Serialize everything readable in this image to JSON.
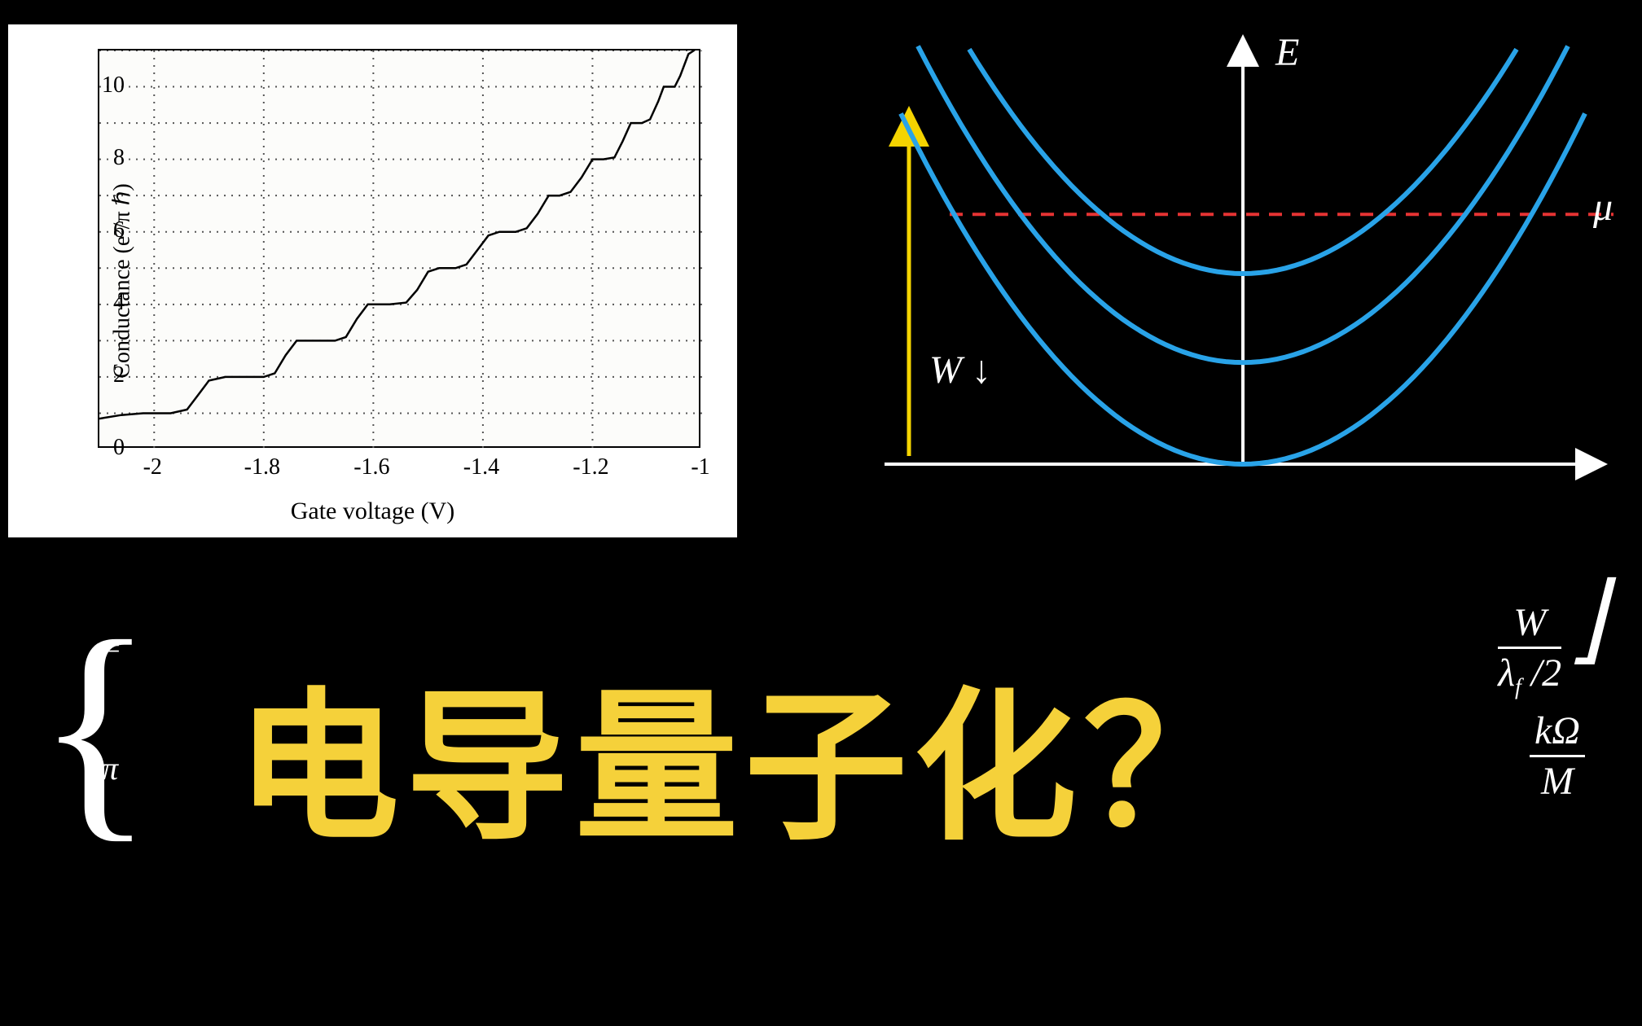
{
  "conductance_chart": {
    "type": "step-line",
    "background_color": "#ffffff",
    "plot_bg": "#fcfcfa",
    "border_color": "#000000",
    "line_color": "#000000",
    "line_width": 2.5,
    "grid_style": "dotted",
    "grid_color": "#555555",
    "xlabel": "Gate voltage  (V)",
    "ylabel": "Conductance (e²/π ℏ)",
    "label_fontsize": 28,
    "tick_fontsize": 28,
    "xlim": [
      -2.1,
      -1.0
    ],
    "ylim": [
      0,
      11
    ],
    "xticks": [
      -2,
      -1.8,
      -1.6,
      -1.4,
      -1.2,
      -1
    ],
    "yticks": [
      0,
      2,
      4,
      6,
      8,
      10
    ],
    "x_grid_at": [
      -2,
      -1.8,
      -1.6,
      -1.4,
      -1.2
    ],
    "y_grid_at": [
      1,
      2,
      3,
      4,
      5,
      6,
      7,
      8,
      9,
      10,
      11
    ],
    "step_points": [
      [
        -2.1,
        0.85
      ],
      [
        -2.06,
        0.95
      ],
      [
        -2.02,
        1.0
      ],
      [
        -1.97,
        1.0
      ],
      [
        -1.94,
        1.1
      ],
      [
        -1.92,
        1.5
      ],
      [
        -1.9,
        1.9
      ],
      [
        -1.87,
        2.0
      ],
      [
        -1.8,
        2.0
      ],
      [
        -1.78,
        2.1
      ],
      [
        -1.76,
        2.6
      ],
      [
        -1.74,
        3.0
      ],
      [
        -1.7,
        3.0
      ],
      [
        -1.67,
        3.0
      ],
      [
        -1.65,
        3.1
      ],
      [
        -1.63,
        3.6
      ],
      [
        -1.61,
        4.0
      ],
      [
        -1.57,
        4.0
      ],
      [
        -1.54,
        4.05
      ],
      [
        -1.52,
        4.4
      ],
      [
        -1.5,
        4.9
      ],
      [
        -1.48,
        5.0
      ],
      [
        -1.45,
        5.0
      ],
      [
        -1.43,
        5.1
      ],
      [
        -1.41,
        5.5
      ],
      [
        -1.39,
        5.9
      ],
      [
        -1.37,
        6.0
      ],
      [
        -1.34,
        6.0
      ],
      [
        -1.32,
        6.1
      ],
      [
        -1.3,
        6.5
      ],
      [
        -1.28,
        7.0
      ],
      [
        -1.26,
        7.0
      ],
      [
        -1.24,
        7.1
      ],
      [
        -1.22,
        7.5
      ],
      [
        -1.2,
        8.0
      ],
      [
        -1.18,
        8.0
      ],
      [
        -1.16,
        8.05
      ],
      [
        -1.145,
        8.5
      ],
      [
        -1.13,
        9.0
      ],
      [
        -1.11,
        9.0
      ],
      [
        -1.095,
        9.1
      ],
      [
        -1.08,
        9.6
      ],
      [
        -1.07,
        10.0
      ],
      [
        -1.05,
        10.0
      ],
      [
        -1.04,
        10.3
      ],
      [
        -1.025,
        10.9
      ],
      [
        -1.015,
        11.0
      ],
      [
        -1.0,
        11.2
      ]
    ]
  },
  "energy_diagram": {
    "type": "parabola-bands",
    "background_color": "#000000",
    "parabola_color": "#29a3e8",
    "parabola_width": 6,
    "mu_line_color": "#e63333",
    "mu_line_width": 4,
    "axis_color": "#ffffff",
    "yellow_arrow_color": "#f5d400",
    "E_label": "E",
    "mu_label": "μ",
    "W_label": "W ↓",
    "label_fontsize": 44,
    "parabola_minima_y": [
      0,
      0.24,
      0.45
    ],
    "parabola_coeff": 2.3,
    "mu_y": 0.59,
    "xrange": [
      -0.6,
      0.6
    ]
  },
  "title": {
    "text": "电导量子化？",
    "color": "#f5d13a",
    "fontsize": 200,
    "fontweight": "bold"
  },
  "side_formulas": {
    "left_bracket": "{",
    "left_frag1": "=",
    "left_frag2": "π",
    "right_frac_num": "W",
    "right_frac_den": "λ_f /2",
    "right_bracket": "⌋",
    "right_lower_num": "kΩ",
    "right_lower_den": "M",
    "color": "#ffffff",
    "fontsize": 44
  }
}
